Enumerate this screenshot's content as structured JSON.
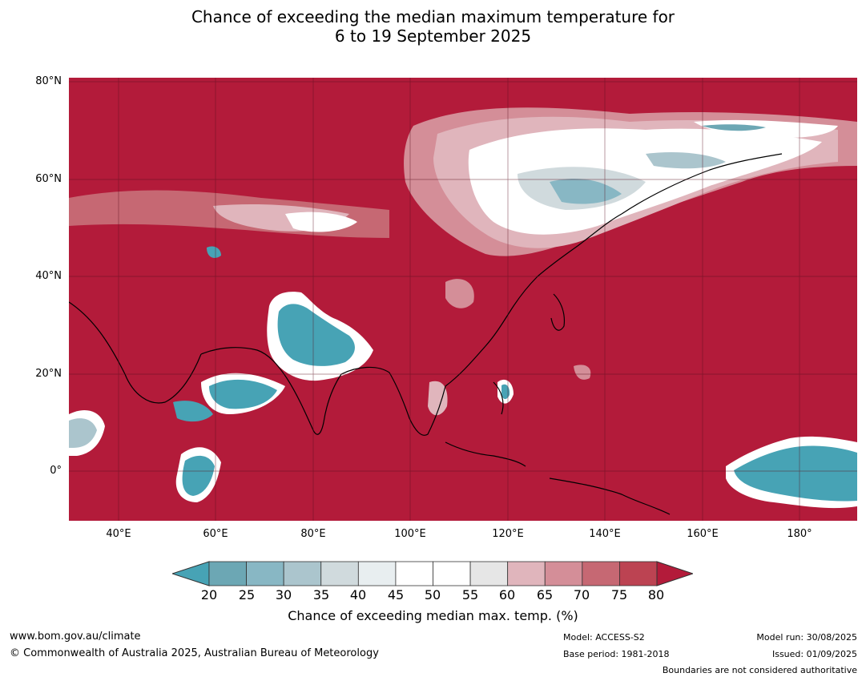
{
  "title": {
    "line1": "Chance of exceeding the median maximum temperature for",
    "line2": "6 to 19 September 2025"
  },
  "map": {
    "lat_labels": [
      "80°N",
      "60°N",
      "40°N",
      "20°N",
      "0°"
    ],
    "lon_labels": [
      "40°E",
      "60°E",
      "80°E",
      "100°E",
      "120°E",
      "140°E",
      "160°E",
      "180°"
    ],
    "dominant_color": "#b31b3a",
    "low_color": "#47a3b5"
  },
  "colorbar": {
    "ticks": [
      "20",
      "25",
      "30",
      "35",
      "40",
      "45",
      "50",
      "55",
      "60",
      "65",
      "70",
      "75",
      "80"
    ],
    "colors": [
      "#47a3b5",
      "#6ca7b4",
      "#88b7c4",
      "#abc5cd",
      "#d0dadd",
      "#e8eef0",
      "#ffffff",
      "#ffffff",
      "#e6e6e6",
      "#e0b5bc",
      "#d48e98",
      "#c66873",
      "#bc4352",
      "#b31b3a"
    ],
    "label": "Chance of exceeding median max. temp. (%)"
  },
  "footer": {
    "url": "www.bom.gov.au/climate",
    "copyright": "© Commonwealth of Australia 2025, Australian Bureau of Meteorology",
    "model": "Model: ACCESS-S2",
    "base_period": "Base period: 1981-2018",
    "model_run": "Model run: 30/08/2025",
    "issued": "Issued: 01/09/2025",
    "disclaimer": "Boundaries are not considered authoritative"
  }
}
